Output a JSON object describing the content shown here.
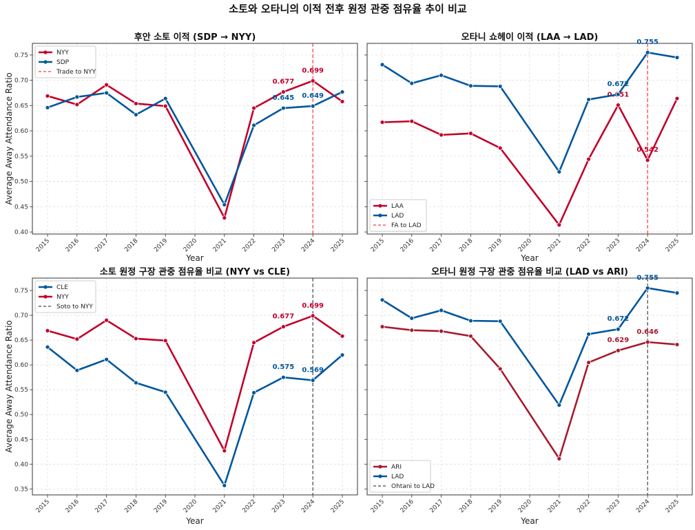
{
  "title": "소토와 오타니의 이적 전후 원정 관중 점유율 추이 비교",
  "colors": {
    "red": "#c1002a",
    "blue": "#00569c",
    "ari": "#a71930",
    "trade_red": "#ff3333",
    "trade_black": "#444444"
  },
  "chart_data": [
    {
      "type": "line",
      "title": "후안 소토 이적 (SDP → NYY)",
      "xlabel": "Year",
      "ylabel": "Average Away Attendance Ratio",
      "x": [
        2015,
        2016,
        2017,
        2018,
        2019,
        2021,
        2022,
        2023,
        2024,
        2025
      ],
      "xticks": [
        "2015",
        "2016",
        "2017",
        "2018",
        "2019",
        "2020",
        "2021",
        "2022",
        "2023",
        "2024",
        "2025"
      ],
      "yticks": [
        "0.40",
        "0.45",
        "0.50",
        "0.55",
        "0.60",
        "0.65",
        "0.70",
        "0.75"
      ],
      "ylim": [
        0.396,
        0.773
      ],
      "grid": true,
      "legend": "upper-left",
      "series": [
        {
          "name": "NYY",
          "color": "#c1002a",
          "values": [
            0.669,
            0.652,
            0.691,
            0.654,
            0.649,
            0.428,
            0.645,
            0.677,
            0.699,
            0.658
          ],
          "annotations": [
            {
              "x": 2023,
              "label": "0.677"
            },
            {
              "x": 2024,
              "label": "0.699"
            }
          ]
        },
        {
          "name": "SDP",
          "color": "#00569c",
          "values": [
            0.646,
            0.667,
            0.675,
            0.632,
            0.664,
            0.454,
            0.611,
            0.645,
            0.649,
            0.677
          ],
          "annotations": [
            {
              "x": 2023,
              "label": "0.645"
            },
            {
              "x": 2024,
              "label": "0.649"
            }
          ]
        }
      ],
      "vline": {
        "x": 2024,
        "label": "Trade to NYY",
        "color": "#ff3333"
      }
    },
    {
      "type": "line",
      "title": "오타니 쇼헤이 이적 (LAA → LAD)",
      "xlabel": "Year",
      "ylabel": "",
      "x": [
        2015,
        2016,
        2017,
        2018,
        2019,
        2021,
        2022,
        2023,
        2024,
        2025
      ],
      "xticks": [
        "2015",
        "2016",
        "2017",
        "2018",
        "2019",
        "2020",
        "2021",
        "2022",
        "2023",
        "2024",
        "2025"
      ],
      "yticks": [],
      "ylim": [
        0.396,
        0.773
      ],
      "grid": true,
      "legend": "lower-left",
      "series": [
        {
          "name": "LAA",
          "color": "#c1002a",
          "values": [
            0.617,
            0.619,
            0.592,
            0.595,
            0.566,
            0.414,
            0.544,
            0.651,
            0.542,
            0.664
          ],
          "annotations": [
            {
              "x": 2023,
              "label": "0.651"
            },
            {
              "x": 2024,
              "label": "0.542"
            }
          ]
        },
        {
          "name": "LAD",
          "color": "#00569c",
          "values": [
            0.731,
            0.694,
            0.71,
            0.689,
            0.688,
            0.519,
            0.662,
            0.672,
            0.755,
            0.745
          ],
          "annotations": [
            {
              "x": 2023,
              "label": "0.672"
            },
            {
              "x": 2024,
              "label": "0.755"
            }
          ]
        }
      ],
      "vline": {
        "x": 2024,
        "label": "FA to LAD",
        "color": "#ff3333"
      }
    },
    {
      "type": "line",
      "title": "소토 원정 구장 관중 점유율 비교 (NYY vs CLE)",
      "xlabel": "Year",
      "ylabel": "Average Away Attendance Ratio",
      "x": [
        2015,
        2016,
        2017,
        2018,
        2019,
        2021,
        2022,
        2023,
        2024,
        2025
      ],
      "xticks": [
        "2015",
        "2016",
        "2017",
        "2018",
        "2019",
        "2020",
        "2021",
        "2022",
        "2023",
        "2024",
        "2025"
      ],
      "yticks": [
        "0.35",
        "0.40",
        "0.45",
        "0.50",
        "0.55",
        "0.60",
        "0.65",
        "0.70",
        "0.75"
      ],
      "ylim": [
        0.338,
        0.775
      ],
      "grid": true,
      "legend": "upper-left",
      "series": [
        {
          "name": "CLE",
          "color": "#00569c",
          "values": [
            0.636,
            0.589,
            0.611,
            0.564,
            0.545,
            0.357,
            0.544,
            0.575,
            0.569,
            0.62
          ],
          "annotations": [
            {
              "x": 2023,
              "label": "0.575"
            },
            {
              "x": 2024,
              "label": "0.569"
            }
          ]
        },
        {
          "name": "NYY",
          "color": "#c1002a",
          "values": [
            0.669,
            0.652,
            0.69,
            0.653,
            0.649,
            0.427,
            0.645,
            0.677,
            0.699,
            0.658
          ],
          "annotations": [
            {
              "x": 2023,
              "label": "0.677"
            },
            {
              "x": 2024,
              "label": "0.699"
            }
          ]
        }
      ],
      "vline": {
        "x": 2024,
        "label": "Soto to NYY",
        "color": "#444444"
      }
    },
    {
      "type": "line",
      "title": "오타니 원정 구장 관중 점유율 비교 (LAD vs ARI)",
      "xlabel": "Year",
      "ylabel": "",
      "x": [
        2015,
        2016,
        2017,
        2018,
        2019,
        2021,
        2022,
        2023,
        2024,
        2025
      ],
      "xticks": [
        "2015",
        "2016",
        "2017",
        "2018",
        "2019",
        "2020",
        "2021",
        "2022",
        "2023",
        "2024",
        "2025"
      ],
      "yticks": [],
      "ylim": [
        0.338,
        0.775
      ],
      "grid": true,
      "legend": "lower-left",
      "series": [
        {
          "name": "ARI",
          "color": "#a71930",
          "values": [
            0.677,
            0.67,
            0.668,
            0.658,
            0.592,
            0.411,
            0.605,
            0.629,
            0.646,
            0.641
          ],
          "annotations": [
            {
              "x": 2023,
              "label": "0.629"
            },
            {
              "x": 2024,
              "label": "0.646"
            }
          ]
        },
        {
          "name": "LAD",
          "color": "#00569c",
          "values": [
            0.731,
            0.694,
            0.71,
            0.689,
            0.688,
            0.519,
            0.662,
            0.672,
            0.755,
            0.745
          ],
          "annotations": [
            {
              "x": 2023,
              "label": "0.672"
            },
            {
              "x": 2024,
              "label": "0.755"
            }
          ]
        }
      ],
      "vline": {
        "x": 2024,
        "label": "Ohtani to LAD",
        "color": "#444444"
      }
    }
  ]
}
